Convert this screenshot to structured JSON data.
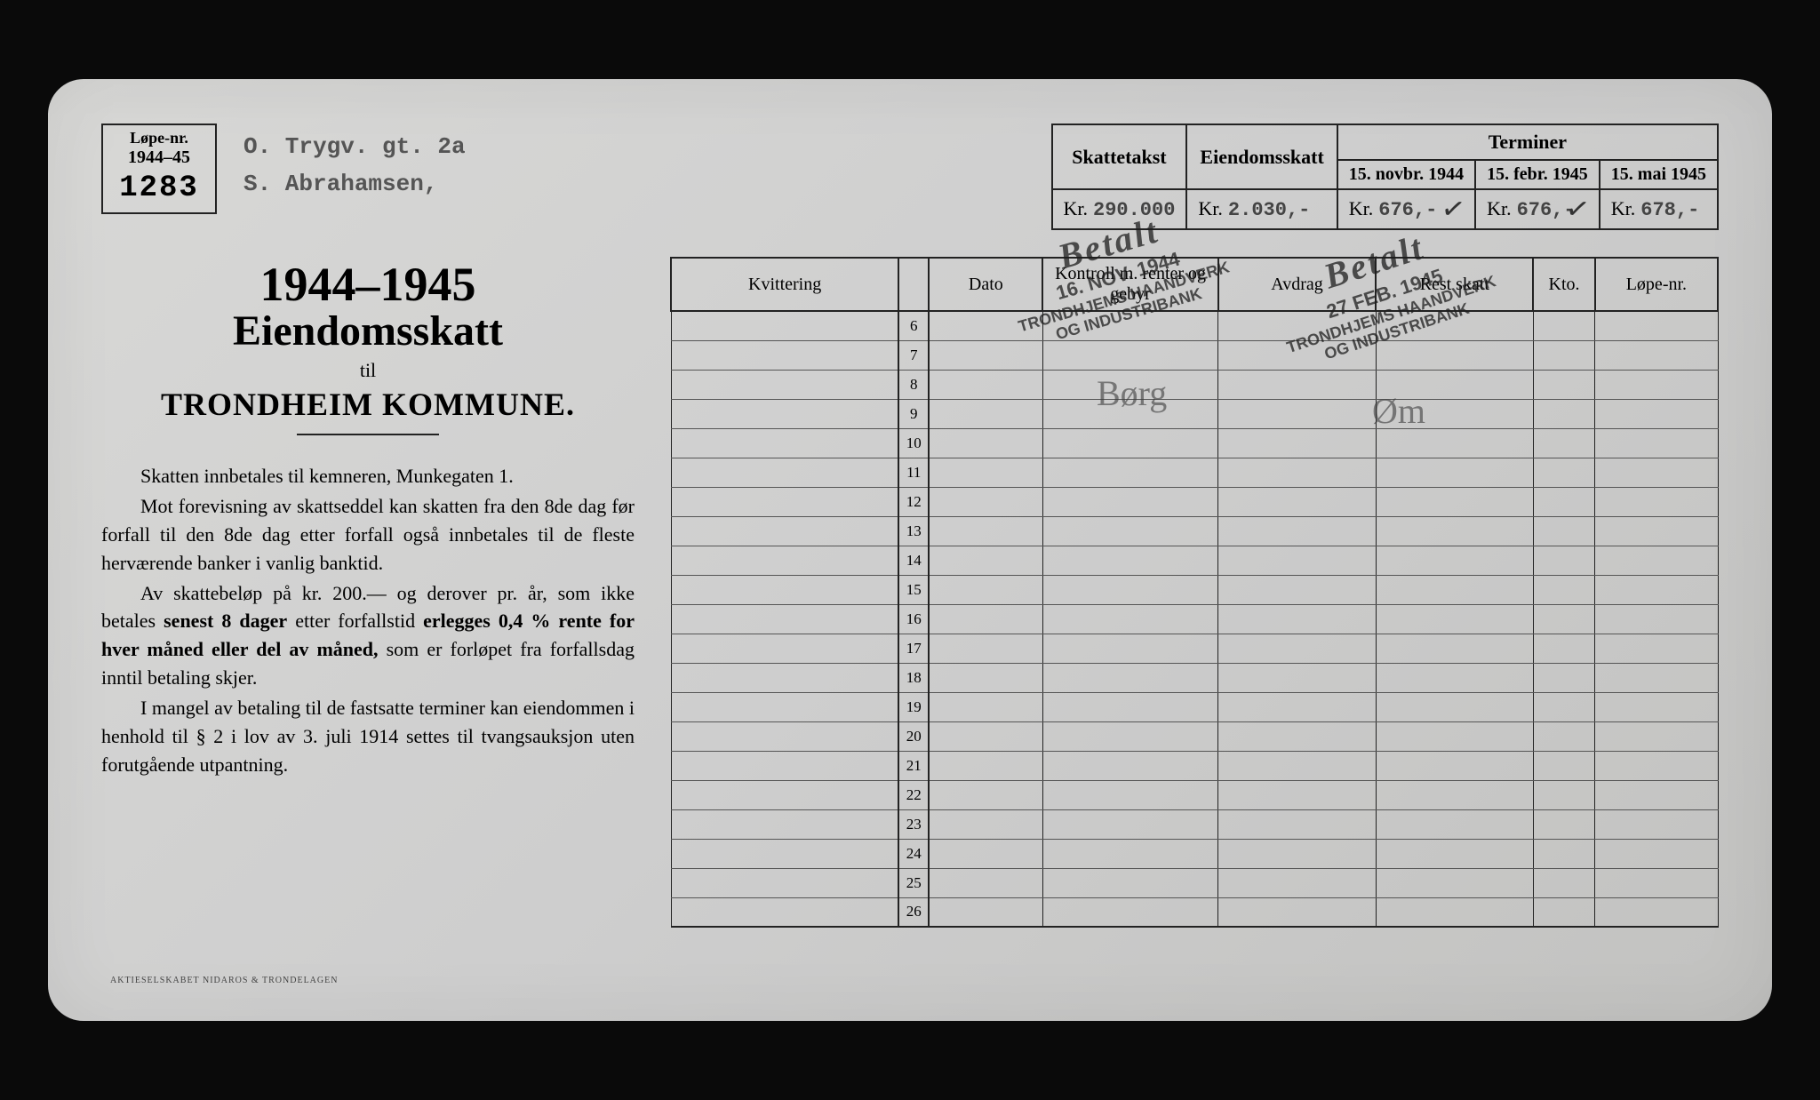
{
  "lope": {
    "label": "Løpe-nr.",
    "year": "1944–45",
    "number": "1283"
  },
  "address": {
    "line1": "O. Trygv. gt. 2a",
    "line2": "S. Abrahamsen,"
  },
  "top_table": {
    "headers": {
      "skattetakst": "Skattetakst",
      "eiendomsskatt": "Eiendomsskatt",
      "terminer": "Terminer"
    },
    "term_dates": [
      "15. novbr. 1944",
      "15. febr. 1945",
      "15. mai 1945"
    ],
    "kr_label": "Kr.",
    "values": {
      "skattetakst": "290.000",
      "eiendomsskatt": "2.030,-",
      "t1": "676,-",
      "t2": "676,-",
      "t3": "678,-"
    }
  },
  "title": {
    "year": "1944–1945",
    "main": "Eiendomsskatt",
    "til": "til",
    "kommune": "TRONDHEIM KOMMUNE."
  },
  "body": {
    "p1": "Skatten innbetales til kemneren, Munkegaten 1.",
    "p2a": "Mot forevisning av skattseddel kan skatten fra den 8de dag før forfall til den 8de dag etter forfall også innbetales til de fleste herværende banker i vanlig banktid.",
    "p3a": "Av skattebeløp på kr. 200.— og derover pr. år, som ikke betales ",
    "p3b": "senest 8 dager",
    "p3c": " etter forfallstid ",
    "p3d": "er­legges 0,4 % rente for hver måned eller del av måned,",
    "p3e": " som er forløpet fra forfallsdag inntil betaling skjer.",
    "p4": "I mangel av betaling til de fastsatte terminer kan eiendommen i henhold til § 2 i lov av 3. juli 1914 settes til tvangsauksjon uten forutgående utpantning."
  },
  "ledger": {
    "headers": {
      "kvittering": "Kvittering",
      "dato": "Dato",
      "kontroll": "Kontroll m. renter og gebyr",
      "avdrag": "Avdrag",
      "rest": "Rest skatt",
      "kto": "Kto.",
      "lope": "Løpe-nr."
    },
    "row_start": 6,
    "row_end": 26
  },
  "stamps": {
    "betalt": "Betalt",
    "s1_date": "16. NOV. 1944",
    "s2_date": "27 FEB. 1945",
    "bank1": "TRONDHJEMS HAANDVERK",
    "bank2": "OG INDUSTRIBANK"
  },
  "printer": "AKTIESELSKABET NIDAROS & TRONDELAGEN"
}
